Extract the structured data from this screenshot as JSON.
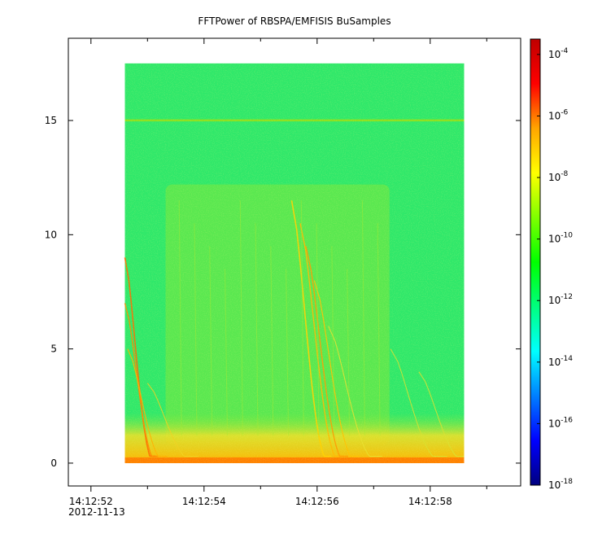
{
  "chart_data": {
    "type": "heatmap",
    "title": "FFTPower of RBSPA/EMFISIS  BuSamples",
    "xlabel": "",
    "ylabel": "",
    "x_tick_labels": [
      "14:12:52",
      "14:12:54",
      "14:12:56",
      "14:12:58"
    ],
    "x_tick_values_s": [
      52,
      54,
      56,
      58
    ],
    "x_date_label": "2012-11-13",
    "x_range_s": [
      51.6,
      59.6
    ],
    "data_x_range_s": [
      52.6,
      58.6
    ],
    "y_ticks": [
      {
        "value": 0,
        "label": "0"
      },
      {
        "value": 5,
        "label": "5"
      },
      {
        "value": 10,
        "label": "10"
      },
      {
        "value": 15,
        "label": "15"
      }
    ],
    "ylim": [
      -1.0,
      18.6
    ],
    "data_y_range": [
      0.0,
      17.5
    ],
    "colorbar": {
      "scale": "log",
      "range_exp": [
        -18,
        -3.5
      ],
      "ticks": [
        {
          "base": "10",
          "exp": "-4",
          "value": -4
        },
        {
          "base": "10",
          "exp": "-6",
          "value": -6
        },
        {
          "base": "10",
          "exp": "-8",
          "value": -8
        },
        {
          "base": "10",
          "exp": "-10",
          "value": -10
        },
        {
          "base": "10",
          "exp": "-12",
          "value": -12
        },
        {
          "base": "10",
          "exp": "-14",
          "value": -14
        },
        {
          "base": "10",
          "exp": "-16",
          "value": -16
        },
        {
          "base": "10",
          "exp": "-18",
          "value": -18
        }
      ],
      "colormap": [
        "#00007f",
        "#0000ff",
        "#007fff",
        "#00ffff",
        "#00ff7f",
        "#00ff00",
        "#7fff00",
        "#ffff00",
        "#ffa500",
        "#ff0000",
        "#bf0000"
      ]
    },
    "features": {
      "background_color": "#2fe86a",
      "core_color": "#7ce83a",
      "lowband_color": "#f2d21a",
      "base_color": "#ff7a00",
      "line_15_color": "#8ce020"
    }
  }
}
